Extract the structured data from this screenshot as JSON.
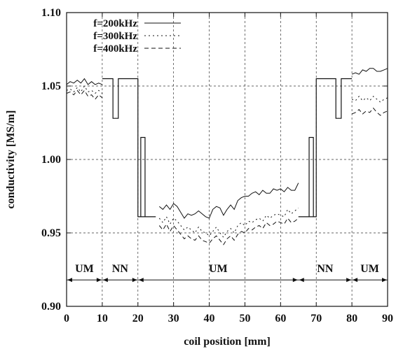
{
  "chart_data": {
    "type": "line",
    "title": "",
    "xlabel": "coil position [mm]",
    "ylabel": "conductivity [MS/m]",
    "xlim": [
      0,
      90
    ],
    "ylim": [
      0.9,
      1.1
    ],
    "xticks": [
      "0",
      "10",
      "20",
      "30",
      "40",
      "50",
      "60",
      "70",
      "80",
      "90"
    ],
    "yticks": [
      "0.90",
      "0.95",
      "1.00",
      "1.05",
      "1.10"
    ],
    "grid": true,
    "legend_position": "top-left",
    "series": [
      {
        "name": "f=200kHz",
        "style": "solid",
        "segments": [
          [
            [
              0,
              1.051
            ],
            [
              1,
              1.053
            ],
            [
              2,
              1.052
            ],
            [
              3,
              1.054
            ],
            [
              4,
              1.052
            ],
            [
              5,
              1.055
            ],
            [
              6,
              1.051
            ],
            [
              7,
              1.053
            ],
            [
              8,
              1.051
            ],
            [
              9,
              1.052
            ],
            [
              10,
              1.051
            ]
          ],
          [
            [
              26,
              0.968
            ],
            [
              27,
              0.966
            ],
            [
              28,
              0.969
            ],
            [
              29,
              0.966
            ],
            [
              30,
              0.97
            ],
            [
              31,
              0.968
            ],
            [
              32,
              0.964
            ],
            [
              33,
              0.96
            ],
            [
              34,
              0.963
            ],
            [
              35,
              0.962
            ],
            [
              36,
              0.963
            ],
            [
              37,
              0.965
            ],
            [
              38,
              0.963
            ],
            [
              39,
              0.961
            ],
            [
              40,
              0.96
            ],
            [
              41,
              0.966
            ],
            [
              42,
              0.968
            ],
            [
              43,
              0.967
            ],
            [
              44,
              0.962
            ],
            [
              45,
              0.966
            ],
            [
              46,
              0.969
            ],
            [
              47,
              0.966
            ],
            [
              48,
              0.972
            ],
            [
              49,
              0.974
            ],
            [
              50,
              0.975
            ],
            [
              51,
              0.975
            ],
            [
              52,
              0.977
            ],
            [
              53,
              0.978
            ],
            [
              54,
              0.976
            ],
            [
              55,
              0.979
            ],
            [
              56,
              0.977
            ],
            [
              57,
              0.977
            ],
            [
              58,
              0.98
            ],
            [
              59,
              0.979
            ],
            [
              60,
              0.98
            ],
            [
              61,
              0.978
            ],
            [
              62,
              0.981
            ],
            [
              63,
              0.979
            ],
            [
              64,
              0.979
            ],
            [
              65,
              0.984
            ]
          ],
          [
            [
              80,
              1.058
            ],
            [
              81,
              1.059
            ],
            [
              82,
              1.058
            ],
            [
              83,
              1.061
            ],
            [
              84,
              1.06
            ],
            [
              85,
              1.062
            ],
            [
              86,
              1.062
            ],
            [
              87,
              1.06
            ],
            [
              88,
              1.06
            ],
            [
              89,
              1.061
            ],
            [
              90,
              1.062
            ]
          ]
        ]
      },
      {
        "name": "f=300kHz",
        "style": "dotted",
        "segments": [
          [
            [
              0,
              1.047
            ],
            [
              1,
              1.048
            ],
            [
              2,
              1.046
            ],
            [
              3,
              1.049
            ],
            [
              4,
              1.046
            ],
            [
              5,
              1.05
            ],
            [
              6,
              1.046
            ],
            [
              7,
              1.047
            ],
            [
              8,
              1.045
            ],
            [
              9,
              1.047
            ],
            [
              10,
              1.045
            ]
          ],
          [
            [
              26,
              0.96
            ],
            [
              27,
              0.957
            ],
            [
              28,
              0.961
            ],
            [
              29,
              0.956
            ],
            [
              30,
              0.96
            ],
            [
              31,
              0.958
            ],
            [
              32,
              0.955
            ],
            [
              33,
              0.952
            ],
            [
              34,
              0.954
            ],
            [
              35,
              0.952
            ],
            [
              36,
              0.95
            ],
            [
              37,
              0.954
            ],
            [
              38,
              0.951
            ],
            [
              39,
              0.95
            ],
            [
              40,
              0.948
            ],
            [
              41,
              0.951
            ],
            [
              42,
              0.954
            ],
            [
              43,
              0.95
            ],
            [
              44,
              0.947
            ],
            [
              45,
              0.951
            ],
            [
              46,
              0.953
            ],
            [
              47,
              0.95
            ],
            [
              48,
              0.955
            ],
            [
              49,
              0.957
            ],
            [
              50,
              0.955
            ],
            [
              51,
              0.958
            ],
            [
              52,
              0.957
            ],
            [
              53,
              0.959
            ],
            [
              54,
              0.96
            ],
            [
              55,
              0.958
            ],
            [
              56,
              0.962
            ],
            [
              57,
              0.96
            ],
            [
              58,
              0.962
            ],
            [
              59,
              0.963
            ],
            [
              60,
              0.962
            ],
            [
              61,
              0.961
            ],
            [
              62,
              0.966
            ],
            [
              63,
              0.963
            ],
            [
              64,
              0.965
            ],
            [
              65,
              0.967
            ]
          ],
          [
            [
              80,
              1.041
            ],
            [
              81,
              1.04
            ],
            [
              82,
              1.043
            ],
            [
              83,
              1.04
            ],
            [
              84,
              1.042
            ],
            [
              85,
              1.04
            ],
            [
              86,
              1.043
            ],
            [
              87,
              1.041
            ],
            [
              88,
              1.039
            ],
            [
              89,
              1.041
            ],
            [
              90,
              1.042
            ]
          ]
        ]
      },
      {
        "name": "f=400kHz",
        "style": "dashed",
        "segments": [
          [
            [
              0,
              1.045
            ],
            [
              1,
              1.046
            ],
            [
              2,
              1.044
            ],
            [
              3,
              1.047
            ],
            [
              4,
              1.044
            ],
            [
              5,
              1.047
            ],
            [
              6,
              1.043
            ],
            [
              7,
              1.044
            ],
            [
              8,
              1.041
            ],
            [
              9,
              1.044
            ],
            [
              10,
              1.042
            ]
          ],
          [
            [
              26,
              0.955
            ],
            [
              27,
              0.952
            ],
            [
              28,
              0.956
            ],
            [
              29,
              0.951
            ],
            [
              30,
              0.955
            ],
            [
              31,
              0.952
            ],
            [
              32,
              0.949
            ],
            [
              33,
              0.946
            ],
            [
              34,
              0.948
            ],
            [
              35,
              0.946
            ],
            [
              36,
              0.945
            ],
            [
              37,
              0.948
            ],
            [
              38,
              0.945
            ],
            [
              39,
              0.944
            ],
            [
              40,
              0.943
            ],
            [
              41,
              0.946
            ],
            [
              42,
              0.948
            ],
            [
              43,
              0.945
            ],
            [
              44,
              0.942
            ],
            [
              45,
              0.946
            ],
            [
              46,
              0.948
            ],
            [
              47,
              0.945
            ],
            [
              48,
              0.949
            ],
            [
              49,
              0.951
            ],
            [
              50,
              0.95
            ],
            [
              51,
              0.953
            ],
            [
              52,
              0.952
            ],
            [
              53,
              0.954
            ],
            [
              54,
              0.955
            ],
            [
              55,
              0.953
            ],
            [
              56,
              0.957
            ],
            [
              57,
              0.955
            ],
            [
              58,
              0.956
            ],
            [
              59,
              0.958
            ],
            [
              60,
              0.957
            ],
            [
              61,
              0.956
            ],
            [
              62,
              0.96
            ],
            [
              63,
              0.957
            ],
            [
              64,
              0.958
            ],
            [
              65,
              0.96
            ]
          ],
          [
            [
              80,
              1.031
            ],
            [
              81,
              1.032
            ],
            [
              82,
              1.034
            ],
            [
              83,
              1.031
            ],
            [
              84,
              1.033
            ],
            [
              85,
              1.032
            ],
            [
              86,
              1.035
            ],
            [
              87,
              1.032
            ],
            [
              88,
              1.03
            ],
            [
              89,
              1.032
            ],
            [
              90,
              1.033
            ]
          ]
        ]
      }
    ],
    "profile_shapes": [
      [
        [
          10,
          1.055
        ],
        [
          13,
          1.055
        ],
        [
          13,
          1.028
        ],
        [
          14.5,
          1.028
        ],
        [
          14.5,
          1.055
        ],
        [
          20,
          1.055
        ],
        [
          20,
          0.961
        ],
        [
          25,
          0.961
        ]
      ],
      [
        [
          20.8,
          0.961
        ],
        [
          20.8,
          1.015
        ],
        [
          22,
          1.015
        ],
        [
          22,
          0.961
        ]
      ],
      [
        [
          65,
          0.961
        ],
        [
          70,
          0.961
        ],
        [
          70,
          1.055
        ],
        [
          75.5,
          1.055
        ],
        [
          75.5,
          1.028
        ],
        [
          77,
          1.028
        ],
        [
          77,
          1.055
        ],
        [
          80,
          1.055
        ]
      ],
      [
        [
          68,
          0.961
        ],
        [
          68,
          1.015
        ],
        [
          69.2,
          1.015
        ],
        [
          69.2,
          0.961
        ]
      ]
    ],
    "regions": [
      {
        "label": "UM",
        "from": 0,
        "to": 10
      },
      {
        "label": "NN",
        "from": 10,
        "to": 20
      },
      {
        "label": "UM",
        "from": 20,
        "to": 65
      },
      {
        "label": "NN",
        "from": 65,
        "to": 80
      },
      {
        "label": "UM",
        "from": 80,
        "to": 90
      }
    ],
    "region_arrow_y": 0.918
  }
}
